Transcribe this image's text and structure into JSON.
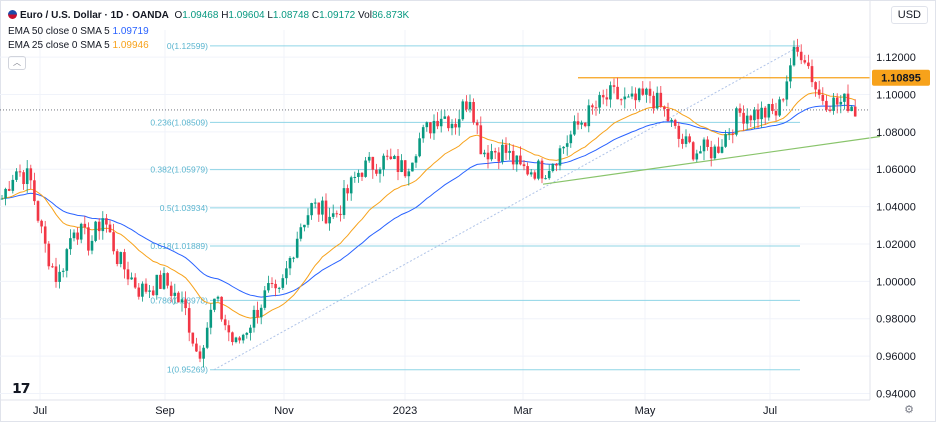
{
  "header": {
    "symbol": "Euro / U.S. Dollar · 1D · OANDA",
    "open_label": "O",
    "open": "1.09468",
    "high_label": "H",
    "high": "1.09604",
    "low_label": "L",
    "low": "1.08748",
    "close_label": "C",
    "close": "1.09172",
    "vol_label": "Vol",
    "vol": "86.873K"
  },
  "indicators": [
    {
      "label": "EMA 50 close 0 SMA 5",
      "value": "1.09719",
      "color": "#2962ff"
    },
    {
      "label": "EMA 25 close 0 SMA 5",
      "value": "1.09946",
      "color": "#f7a21b"
    }
  ],
  "currency": "USD",
  "colors": {
    "up": "#089981",
    "down": "#f23645",
    "ema50": "#2962ff",
    "ema25": "#f7a21b",
    "fib": "#8fd5e6",
    "resistance": "#f7a21b",
    "trendline": "#89c46b",
    "grid": "#f0f3fa"
  },
  "chart_data": {
    "type": "candlestick",
    "x_ticks": [
      "Jul",
      "Sep",
      "Nov",
      "2023",
      "Mar",
      "May",
      "Jul"
    ],
    "y_ticks": [
      "1.12000",
      "1.10000",
      "1.08000",
      "1.06000",
      "1.04000",
      "1.02000",
      "1.00000",
      "0.98000",
      "0.96000",
      "0.94000"
    ],
    "y_range": [
      0.9365,
      1.1345
    ],
    "last_price": 1.09172,
    "resistance": {
      "label": "1.10895",
      "value": 1.10895
    },
    "fibonacci": [
      {
        "label": "0(1.12599)",
        "value": 1.12599
      },
      {
        "label": "0.236(1.08509)",
        "value": 1.08509
      },
      {
        "label": "0.382(1.05979)",
        "value": 1.05979
      },
      {
        "label": "0.5(1.03934)",
        "value": 1.03934
      },
      {
        "label": "0.618(1.01889)",
        "value": 1.01889
      },
      {
        "label": "0.786(0.98978)",
        "value": 0.98978
      },
      {
        "label": "1(0.95269)",
        "value": 0.95269
      }
    ],
    "anchors": [
      [
        0,
        1.042
      ],
      [
        15,
        1.06
      ],
      [
        30,
        1.055
      ],
      [
        44,
        1.02
      ],
      [
        58,
        1.0
      ],
      [
        74,
        1.03
      ],
      [
        90,
        1.02
      ],
      [
        103,
        1.035
      ],
      [
        118,
        1.012
      ],
      [
        140,
        0.995
      ],
      [
        165,
        1.0
      ],
      [
        185,
        0.985
      ],
      [
        198,
        0.96
      ],
      [
        215,
        0.99
      ],
      [
        235,
        0.965
      ],
      [
        250,
        0.978
      ],
      [
        268,
        0.995
      ],
      [
        278,
        0.99
      ],
      [
        300,
        1.03
      ],
      [
        312,
        1.04
      ],
      [
        335,
        1.035
      ],
      [
        360,
        1.06
      ],
      [
        385,
        1.065
      ],
      [
        405,
        1.06
      ],
      [
        418,
        1.075
      ],
      [
        440,
        1.09
      ],
      [
        455,
        1.085
      ],
      [
        470,
        1.1
      ],
      [
        482,
        1.07
      ],
      [
        505,
        1.07
      ],
      [
        520,
        1.06
      ],
      [
        545,
        1.06
      ],
      [
        560,
        1.07
      ],
      [
        580,
        1.085
      ],
      [
        600,
        1.095
      ],
      [
        612,
        1.1
      ],
      [
        630,
        1.095
      ],
      [
        650,
        1.1
      ],
      [
        665,
        1.09
      ],
      [
        680,
        1.075
      ],
      [
        695,
        1.07
      ],
      [
        715,
        1.07
      ],
      [
        740,
        1.09
      ],
      [
        760,
        1.09
      ],
      [
        778,
        1.09
      ],
      [
        792,
        1.12
      ],
      [
        803,
        1.124
      ],
      [
        818,
        1.1
      ],
      [
        835,
        1.095
      ],
      [
        850,
        1.096
      ],
      [
        857,
        1.09
      ]
    ]
  }
}
